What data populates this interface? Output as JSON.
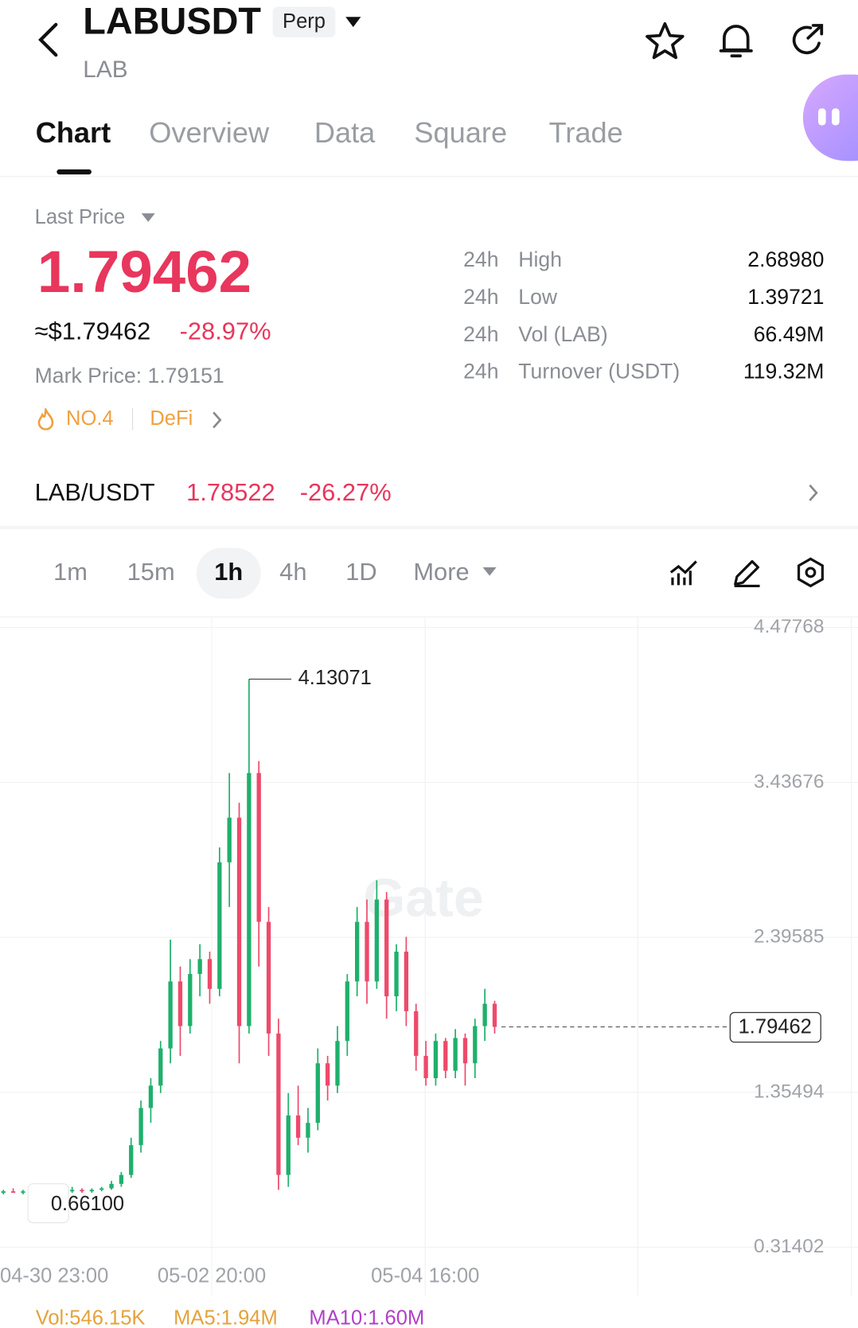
{
  "header": {
    "symbol": "LABUSDT",
    "badge": "Perp",
    "base": "LAB"
  },
  "tabs": [
    "Chart",
    "Overview",
    "Data",
    "Square",
    "Trade"
  ],
  "price": {
    "label": "Last Price",
    "last": "1.79462",
    "usd": "≈$1.79462",
    "change": "-28.97%",
    "mark": "Mark Price: 1.79151",
    "rank": "NO.4",
    "sector": "DeFi"
  },
  "stats": [
    [
      "24h",
      "High",
      "2.68980"
    ],
    [
      "24h",
      "Low",
      "1.39721"
    ],
    [
      "24h",
      "Vol (LAB)",
      "66.49M"
    ],
    [
      "24h",
      "Turnover (USDT)",
      "119.32M"
    ]
  ],
  "spot": {
    "pair": "LAB/USDT",
    "price": "1.78522",
    "change": "-26.27%"
  },
  "timeframes": [
    "1m",
    "15m",
    "1h",
    "4h",
    "1D",
    "More"
  ],
  "chart_data": {
    "type": "candlestick",
    "up_color": "#1fb06c",
    "down_color": "#ee4a6b",
    "grid": true,
    "ylim": [
      0.31402,
      4.47768
    ],
    "yticks": [
      4.47768,
      3.43676,
      2.39585,
      1.35494,
      0.31402
    ],
    "xticks": [
      "04-30 23:00",
      "05-02 20:00",
      "05-04 16:00"
    ],
    "open": [
      0.68,
      0.69,
      0.68,
      0.69,
      0.7,
      0.69,
      0.68,
      0.69,
      0.7,
      0.69,
      0.7,
      0.71,
      0.74,
      0.8,
      1.0,
      1.25,
      1.4,
      1.65,
      2.1,
      1.8,
      2.15,
      2.25,
      2.05,
      2.9,
      3.2,
      1.8,
      3.5,
      2.5,
      1.75,
      0.8,
      1.2,
      1.05,
      1.15,
      1.55,
      1.4,
      1.7,
      2.1,
      2.5,
      2.1,
      2.65,
      2.0,
      2.3,
      1.9,
      1.6,
      1.45,
      1.7,
      1.5,
      1.72,
      1.55,
      1.8,
      1.95
    ],
    "high": [
      0.7,
      0.71,
      0.7,
      0.73,
      0.72,
      0.71,
      0.7,
      0.72,
      0.71,
      0.71,
      0.72,
      0.76,
      0.82,
      1.05,
      1.3,
      1.45,
      1.7,
      2.38,
      2.2,
      2.25,
      2.35,
      2.3,
      3.0,
      3.5,
      3.3,
      4.13071,
      3.58,
      2.6,
      1.85,
      1.35,
      1.4,
      1.25,
      1.65,
      1.6,
      1.8,
      2.15,
      2.6,
      2.65,
      2.78,
      2.7,
      2.35,
      2.4,
      1.95,
      1.7,
      1.75,
      1.72,
      1.78,
      1.75,
      1.85,
      2.05,
      1.97
    ],
    "low": [
      0.67,
      0.68,
      0.67,
      0.661,
      0.68,
      0.67,
      0.67,
      0.68,
      0.68,
      0.68,
      0.69,
      0.7,
      0.72,
      0.78,
      0.95,
      1.15,
      1.35,
      1.55,
      1.6,
      1.75,
      2.0,
      1.95,
      2.0,
      2.6,
      1.55,
      1.75,
      2.2,
      1.6,
      0.7,
      0.72,
      1.0,
      0.95,
      1.1,
      1.3,
      1.35,
      1.6,
      2.0,
      1.95,
      2.05,
      1.85,
      1.9,
      1.8,
      1.5,
      1.4,
      1.4,
      1.45,
      1.45,
      1.4,
      1.45,
      1.7,
      1.75
    ],
    "close": [
      0.69,
      0.68,
      0.69,
      0.7,
      0.69,
      0.68,
      0.69,
      0.7,
      0.69,
      0.7,
      0.71,
      0.74,
      0.8,
      1.0,
      1.25,
      1.4,
      1.65,
      2.1,
      1.8,
      2.15,
      2.25,
      2.05,
      2.9,
      3.2,
      1.8,
      3.5,
      2.5,
      1.75,
      0.8,
      1.2,
      1.05,
      1.15,
      1.55,
      1.4,
      1.7,
      2.1,
      2.5,
      2.1,
      2.65,
      2.0,
      2.3,
      1.9,
      1.6,
      1.45,
      1.7,
      1.5,
      1.72,
      1.55,
      1.8,
      1.95,
      1.79462
    ],
    "low_label": "0.66100",
    "watermark": "Gate"
  },
  "indicators": [
    "Vol:546.15K",
    "MA5:1.94M",
    "MA10:1.60M"
  ]
}
